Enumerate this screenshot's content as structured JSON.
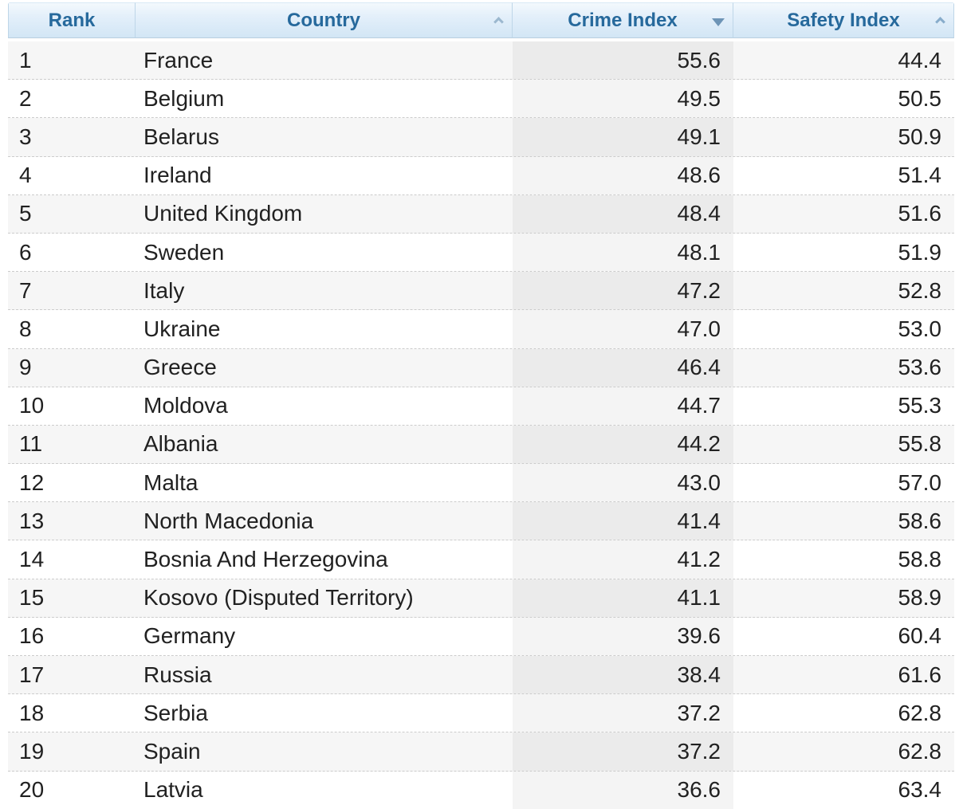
{
  "table": {
    "header": {
      "text_color": "#26699c",
      "background_top": "#f3f9fd",
      "background_bottom": "#d2e6f5",
      "columns": [
        {
          "label": "Rank",
          "sort_icon": "none"
        },
        {
          "label": "Country",
          "sort_icon": "chevron-up"
        },
        {
          "label": "Crime Index",
          "sort_icon": "triangle-down"
        },
        {
          "label": "Safety Index",
          "sort_icon": "chevron-up"
        }
      ]
    },
    "row_colors": {
      "odd": "#f6f6f6",
      "even": "#ffffff",
      "sorted_column_overlay": "rgba(0,0,0,0.045)",
      "separator": "#cccccc"
    },
    "rows": [
      {
        "rank": "1",
        "country": "France",
        "crime": "55.6",
        "safety": "44.4"
      },
      {
        "rank": "2",
        "country": "Belgium",
        "crime": "49.5",
        "safety": "50.5"
      },
      {
        "rank": "3",
        "country": "Belarus",
        "crime": "49.1",
        "safety": "50.9"
      },
      {
        "rank": "4",
        "country": "Ireland",
        "crime": "48.6",
        "safety": "51.4"
      },
      {
        "rank": "5",
        "country": "United Kingdom",
        "crime": "48.4",
        "safety": "51.6"
      },
      {
        "rank": "6",
        "country": "Sweden",
        "crime": "48.1",
        "safety": "51.9"
      },
      {
        "rank": "7",
        "country": "Italy",
        "crime": "47.2",
        "safety": "52.8"
      },
      {
        "rank": "8",
        "country": "Ukraine",
        "crime": "47.0",
        "safety": "53.0"
      },
      {
        "rank": "9",
        "country": "Greece",
        "crime": "46.4",
        "safety": "53.6"
      },
      {
        "rank": "10",
        "country": "Moldova",
        "crime": "44.7",
        "safety": "55.3"
      },
      {
        "rank": "11",
        "country": "Albania",
        "crime": "44.2",
        "safety": "55.8"
      },
      {
        "rank": "12",
        "country": "Malta",
        "crime": "43.0",
        "safety": "57.0"
      },
      {
        "rank": "13",
        "country": "North Macedonia",
        "crime": "41.4",
        "safety": "58.6"
      },
      {
        "rank": "14",
        "country": "Bosnia And Herzegovina",
        "crime": "41.2",
        "safety": "58.8"
      },
      {
        "rank": "15",
        "country": "Kosovo (Disputed Territory)",
        "crime": "41.1",
        "safety": "58.9"
      },
      {
        "rank": "16",
        "country": "Germany",
        "crime": "39.6",
        "safety": "60.4"
      },
      {
        "rank": "17",
        "country": "Russia",
        "crime": "38.4",
        "safety": "61.6"
      },
      {
        "rank": "18",
        "country": "Serbia",
        "crime": "37.2",
        "safety": "62.8"
      },
      {
        "rank": "19",
        "country": "Spain",
        "crime": "37.2",
        "safety": "62.8"
      },
      {
        "rank": "20",
        "country": "Latvia",
        "crime": "36.6",
        "safety": "63.4"
      }
    ]
  }
}
